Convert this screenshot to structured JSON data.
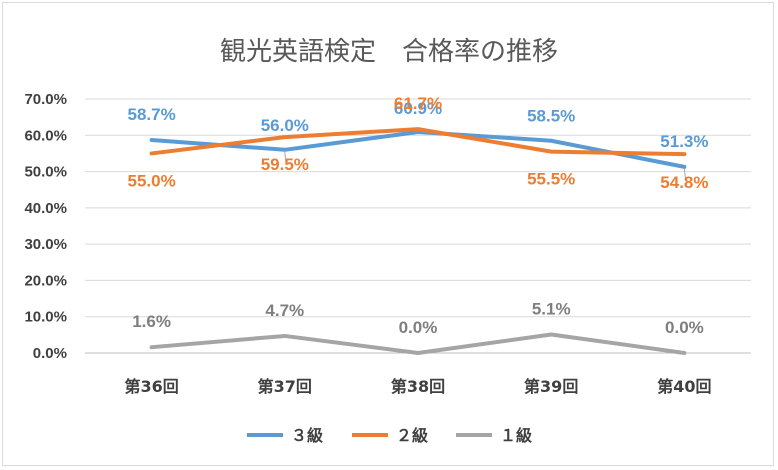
{
  "chart_data": {
    "type": "line",
    "title": "観光英語検定　合格率の推移",
    "categories": [
      "第36回",
      "第37回",
      "第38回",
      "第39回",
      "第40回"
    ],
    "y_ticks": [
      "0.0%",
      "10.0%",
      "20.0%",
      "30.0%",
      "40.0%",
      "50.0%",
      "60.0%",
      "70.0%"
    ],
    "ylim": [
      0,
      70
    ],
    "grid": true,
    "legend_position": "bottom",
    "series": [
      {
        "name": "３級",
        "color": "#5b9bd5",
        "values": [
          58.7,
          56.0,
          60.9,
          58.5,
          51.3
        ],
        "labels": [
          "58.7%",
          "56.0%",
          "60.9%",
          "58.5%",
          "51.3%"
        ]
      },
      {
        "name": "２級",
        "color": "#ed7d31",
        "values": [
          55.0,
          59.5,
          61.7,
          55.5,
          54.8
        ],
        "labels": [
          "55.0%",
          "59.5%",
          "61.7%",
          "55.5%",
          "54.8%"
        ]
      },
      {
        "name": "１級",
        "color": "#a5a5a5",
        "values": [
          1.6,
          4.7,
          0.0,
          5.1,
          0.0
        ],
        "labels": [
          "1.6%",
          "4.7%",
          "0.0%",
          "5.1%",
          "0.0%"
        ]
      }
    ]
  }
}
